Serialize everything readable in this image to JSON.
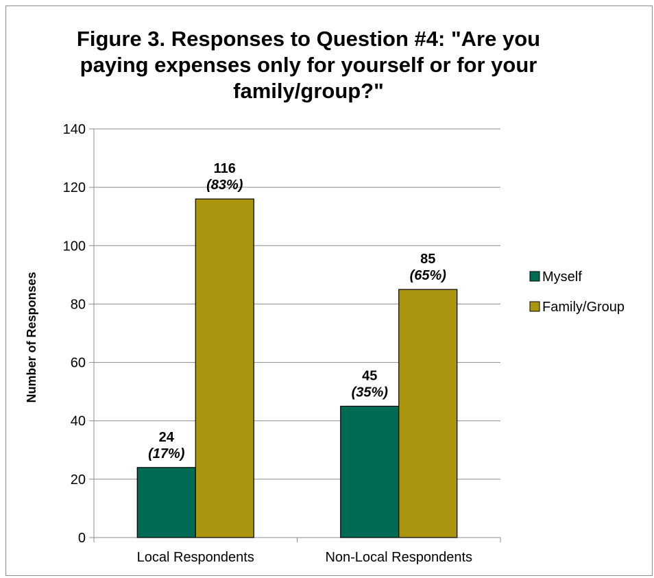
{
  "chart_data": {
    "type": "bar",
    "title": "Figure 3.  Responses to Question #4: \"Are you paying expenses only for yourself or for your family/group?\"",
    "xlabel": "",
    "ylabel": "Number of Responses",
    "ylim": [
      0,
      140
    ],
    "yticks": [
      0,
      20,
      40,
      60,
      80,
      100,
      120,
      140
    ],
    "grid": true,
    "legend_position": "right",
    "categories": [
      "Local Respondents",
      "Non-Local Respondents"
    ],
    "series": [
      {
        "name": "Myself",
        "color": "#006b54",
        "values": [
          24,
          45
        ],
        "pct_labels": [
          "(17%)",
          "(35%)"
        ]
      },
      {
        "name": "Family/Group",
        "color": "#ab950f",
        "values": [
          116,
          85
        ],
        "pct_labels": [
          "(83%)",
          "(65%)"
        ]
      }
    ]
  }
}
